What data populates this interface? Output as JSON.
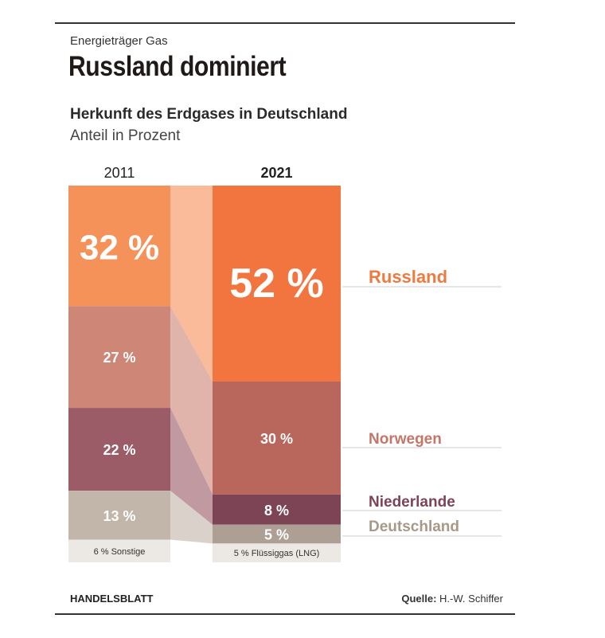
{
  "header": {
    "kicker": "Energieträger Gas",
    "headline": "Russland dominiert",
    "subtitle": "Herkunft des Erdgases in Deutschland",
    "unit": "Anteil in Prozent"
  },
  "footer": {
    "publisher": "HANDELSBLATT",
    "source_label": "Quelle:",
    "source_value": "H.-W. Schiffer"
  },
  "chart_data": {
    "type": "bar",
    "stacked": true,
    "categories": [
      "2011",
      "2021"
    ],
    "series": [
      {
        "name": "Russland",
        "values": [
          32,
          52
        ],
        "labels": [
          "32 %",
          "52 %"
        ],
        "color": "#f5925a",
        "color2": "#f2743e",
        "legend_color": "#ef7a3f"
      },
      {
        "name": "Norwegen",
        "values": [
          27,
          30
        ],
        "labels": [
          "27 %",
          "30 %"
        ],
        "color": "#ce8677",
        "color2": "#b9675c",
        "legend_color": "#c47768"
      },
      {
        "name": "Niederlande",
        "values": [
          22,
          8
        ],
        "labels": [
          "22 %",
          "8 %"
        ],
        "color": "#9b5c68",
        "color2": "#7c4455",
        "legend_color": "#7d4456"
      },
      {
        "name": "Deutschland",
        "values": [
          13,
          5
        ],
        "labels": [
          "13 %",
          "5 %"
        ],
        "color": "#c2b5aa",
        "color2": "#ad9f94",
        "legend_color": "#a89888"
      },
      {
        "name": "",
        "values": [
          6,
          5
        ],
        "labels": [
          "6 % Sonstige",
          "5 % Flüssiggas (LNG)"
        ],
        "color": "#ece8e3",
        "color2": "#ece8e3",
        "legend_color": ""
      }
    ],
    "ylim": [
      0,
      100
    ],
    "legend": "right",
    "grid": false
  }
}
